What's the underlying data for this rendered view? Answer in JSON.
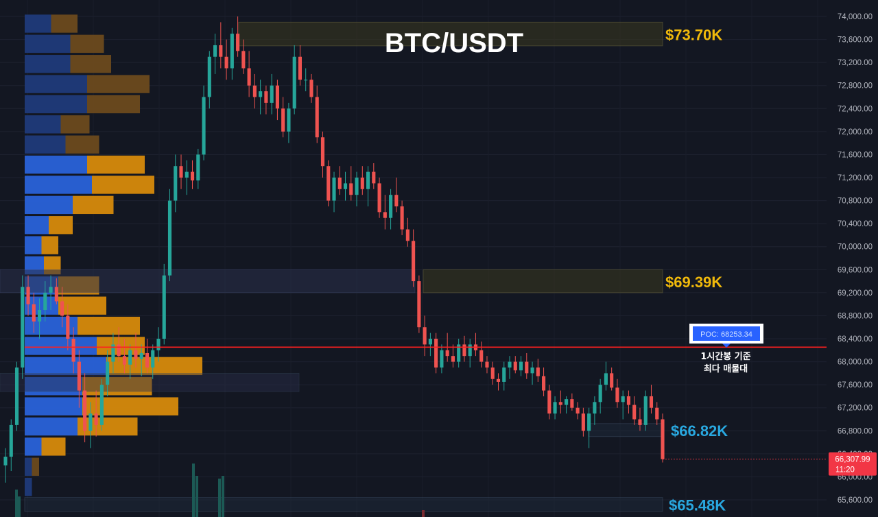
{
  "chart_data": {
    "type": "candlestick",
    "title": "BTC/USDT",
    "y_axis": {
      "min": 65400,
      "max": 74200,
      "ticks": [
        74000,
        73600,
        73200,
        72800,
        72400,
        72000,
        71600,
        71200,
        70800,
        70400,
        70000,
        69600,
        69200,
        68800,
        68400,
        68000,
        67600,
        67200,
        66800,
        66400,
        66000,
        65600
      ],
      "tick_labels": [
        "74,000.00",
        "73,600.00",
        "73,200.00",
        "72,800.00",
        "72,400.00",
        "72,000.00",
        "71,600.00",
        "71,200.00",
        "70,800.00",
        "70,400.00",
        "70,000.00",
        "69,600.00",
        "69,200.00",
        "68,800.00",
        "68,400.00",
        "68,000.00",
        "67,600.00",
        "67,200.00",
        "66,800.00",
        "66,400.00",
        "66,000.00",
        "65,600.00"
      ]
    },
    "current_price": {
      "label": "66,307.99",
      "timer": "11:20",
      "value": 66308,
      "color": "#f23645"
    },
    "poc": {
      "label": "POC: 68253.34",
      "value": 68253,
      "annotation_line1": "1시간봉 기준",
      "annotation_line2": "최다 매물대",
      "color": "#ff1f1f"
    },
    "zones": [
      {
        "label": "$73.70K",
        "top": 73900,
        "bottom": 73490,
        "color": "#f0b90b"
      },
      {
        "label": "$69.39K",
        "top": 69600,
        "bottom": 69200,
        "color": "#f0b90b"
      },
      {
        "label": "$66.82K",
        "top": 66925,
        "bottom": 66700,
        "color": "#29a8e0"
      },
      {
        "label": "$65.48K",
        "top": 65640,
        "bottom": 65400,
        "color": "#29a8e0"
      }
    ],
    "volume_profile": [
      {
        "top": 74050,
        "bottom": 73700,
        "buy": 0.55,
        "sell": 0.55
      },
      {
        "top": 73700,
        "bottom": 73350,
        "buy": 0.95,
        "sell": 0.7
      },
      {
        "top": 73350,
        "bottom": 73000,
        "buy": 0.95,
        "sell": 0.85
      },
      {
        "top": 73000,
        "bottom": 72650,
        "buy": 1.3,
        "sell": 1.3
      },
      {
        "top": 72650,
        "bottom": 72300,
        "buy": 1.3,
        "sell": 1.1
      },
      {
        "top": 72300,
        "bottom": 71950,
        "buy": 0.75,
        "sell": 0.6
      },
      {
        "top": 71950,
        "bottom": 71600,
        "buy": 0.85,
        "sell": 0.7
      },
      {
        "top": 71600,
        "bottom": 71250,
        "buy": 1.3,
        "sell": 1.2
      },
      {
        "top": 71250,
        "bottom": 70900,
        "buy": 1.4,
        "sell": 1.3
      },
      {
        "top": 70900,
        "bottom": 70550,
        "buy": 1.0,
        "sell": 0.85
      },
      {
        "top": 70550,
        "bottom": 70200,
        "buy": 0.5,
        "sell": 0.5
      },
      {
        "top": 70200,
        "bottom": 69850,
        "buy": 0.35,
        "sell": 0.35
      },
      {
        "top": 69850,
        "bottom": 69500,
        "buy": 0.4,
        "sell": 0.35
      },
      {
        "top": 69500,
        "bottom": 69150,
        "buy": 0.7,
        "sell": 0.85
      },
      {
        "top": 69150,
        "bottom": 68800,
        "buy": 0.7,
        "sell": 1.0
      },
      {
        "top": 68800,
        "bottom": 68450,
        "buy": 1.1,
        "sell": 1.3
      },
      {
        "top": 68450,
        "bottom": 68100,
        "buy": 1.5,
        "sell": 1.0
      },
      {
        "top": 68100,
        "bottom": 67750,
        "buy": 1.7,
        "sell": 2.0
      },
      {
        "top": 67750,
        "bottom": 67400,
        "buy": 1.2,
        "sell": 1.45
      },
      {
        "top": 67400,
        "bottom": 67050,
        "buy": 1.2,
        "sell": 2.0
      },
      {
        "top": 67050,
        "bottom": 66700,
        "buy": 1.1,
        "sell": 1.25
      },
      {
        "top": 66700,
        "bottom": 66350,
        "buy": 0.35,
        "sell": 0.5
      },
      {
        "top": 66350,
        "bottom": 66000,
        "buy": 0.15,
        "sell": 0.15
      },
      {
        "top": 66000,
        "bottom": 65650,
        "buy": 0.15,
        "sell": 0.0
      }
    ],
    "candles": [
      {
        "o": 66200,
        "h": 66500,
        "l": 65900,
        "c": 66350
      },
      {
        "o": 66350,
        "h": 67000,
        "l": 66100,
        "c": 66900
      },
      {
        "o": 66900,
        "h": 68000,
        "l": 66800,
        "c": 67900
      },
      {
        "o": 67900,
        "h": 69500,
        "l": 67700,
        "c": 69300
      },
      {
        "o": 69300,
        "h": 69500,
        "l": 68800,
        "c": 69000
      },
      {
        "o": 69000,
        "h": 69200,
        "l": 68500,
        "c": 68700
      },
      {
        "o": 68700,
        "h": 69100,
        "l": 68400,
        "c": 68900
      },
      {
        "o": 68900,
        "h": 69400,
        "l": 68700,
        "c": 69200
      },
      {
        "o": 69200,
        "h": 69500,
        "l": 68900,
        "c": 69300
      },
      {
        "o": 69300,
        "h": 69450,
        "l": 69000,
        "c": 69050
      },
      {
        "o": 69050,
        "h": 69300,
        "l": 68600,
        "c": 68800
      },
      {
        "o": 68800,
        "h": 69000,
        "l": 68200,
        "c": 68400
      },
      {
        "o": 68400,
        "h": 68600,
        "l": 67800,
        "c": 68000
      },
      {
        "o": 68000,
        "h": 68200,
        "l": 67200,
        "c": 67500
      },
      {
        "o": 67500,
        "h": 67800,
        "l": 66600,
        "c": 66800
      },
      {
        "o": 66800,
        "h": 67300,
        "l": 66500,
        "c": 67100
      },
      {
        "o": 67100,
        "h": 67500,
        "l": 66700,
        "c": 66900
      },
      {
        "o": 66900,
        "h": 67700,
        "l": 66800,
        "c": 67600
      },
      {
        "o": 67600,
        "h": 68200,
        "l": 67400,
        "c": 68000
      },
      {
        "o": 68000,
        "h": 68500,
        "l": 67800,
        "c": 68300
      },
      {
        "o": 68300,
        "h": 68600,
        "l": 68000,
        "c": 68100
      },
      {
        "o": 68100,
        "h": 68400,
        "l": 67800,
        "c": 67950
      },
      {
        "o": 67950,
        "h": 68300,
        "l": 67700,
        "c": 68200
      },
      {
        "o": 68200,
        "h": 68500,
        "l": 67900,
        "c": 68050
      },
      {
        "o": 68050,
        "h": 68300,
        "l": 67750,
        "c": 68150
      },
      {
        "o": 68150,
        "h": 68400,
        "l": 67800,
        "c": 67900
      },
      {
        "o": 67900,
        "h": 68300,
        "l": 67700,
        "c": 68200
      },
      {
        "o": 68200,
        "h": 68600,
        "l": 68000,
        "c": 68400
      },
      {
        "o": 68400,
        "h": 69700,
        "l": 68300,
        "c": 69500
      },
      {
        "o": 69500,
        "h": 71000,
        "l": 69400,
        "c": 70800
      },
      {
        "o": 70800,
        "h": 71600,
        "l": 70600,
        "c": 71400
      },
      {
        "o": 71400,
        "h": 71600,
        "l": 71000,
        "c": 71200
      },
      {
        "o": 71200,
        "h": 71500,
        "l": 70900,
        "c": 71300
      },
      {
        "o": 71300,
        "h": 71500,
        "l": 71000,
        "c": 71150
      },
      {
        "o": 71150,
        "h": 71700,
        "l": 71000,
        "c": 71600
      },
      {
        "o": 71600,
        "h": 72800,
        "l": 71500,
        "c": 72600
      },
      {
        "o": 72600,
        "h": 73400,
        "l": 72400,
        "c": 73300
      },
      {
        "o": 73300,
        "h": 73700,
        "l": 73000,
        "c": 73500
      },
      {
        "o": 73500,
        "h": 73900,
        "l": 73100,
        "c": 73300
      },
      {
        "o": 73300,
        "h": 73600,
        "l": 72900,
        "c": 73100
      },
      {
        "o": 73100,
        "h": 73800,
        "l": 72900,
        "c": 73700
      },
      {
        "o": 73700,
        "h": 74000,
        "l": 73300,
        "c": 73400
      },
      {
        "o": 73400,
        "h": 73600,
        "l": 73000,
        "c": 73100
      },
      {
        "o": 73100,
        "h": 73400,
        "l": 72600,
        "c": 72800
      },
      {
        "o": 72800,
        "h": 73000,
        "l": 72400,
        "c": 72600
      },
      {
        "o": 72600,
        "h": 72900,
        "l": 72300,
        "c": 72700
      },
      {
        "o": 72700,
        "h": 72800,
        "l": 72300,
        "c": 72500
      },
      {
        "o": 72500,
        "h": 73000,
        "l": 72300,
        "c": 72800
      },
      {
        "o": 72800,
        "h": 72900,
        "l": 72200,
        "c": 72400
      },
      {
        "o": 72400,
        "h": 72600,
        "l": 71900,
        "c": 72000
      },
      {
        "o": 72000,
        "h": 72500,
        "l": 71800,
        "c": 72400
      },
      {
        "o": 72400,
        "h": 73500,
        "l": 72300,
        "c": 73300
      },
      {
        "o": 73300,
        "h": 73500,
        "l": 72800,
        "c": 72900
      },
      {
        "o": 72900,
        "h": 73100,
        "l": 72700,
        "c": 72900
      },
      {
        "o": 72900,
        "h": 73000,
        "l": 72500,
        "c": 72600
      },
      {
        "o": 72600,
        "h": 72800,
        "l": 71800,
        "c": 71900
      },
      {
        "o": 71900,
        "h": 72000,
        "l": 71200,
        "c": 71400
      },
      {
        "o": 71400,
        "h": 71500,
        "l": 70700,
        "c": 70800
      },
      {
        "o": 70800,
        "h": 71300,
        "l": 70600,
        "c": 71200
      },
      {
        "o": 71200,
        "h": 71400,
        "l": 70900,
        "c": 71000
      },
      {
        "o": 71000,
        "h": 71300,
        "l": 70800,
        "c": 71100
      },
      {
        "o": 71100,
        "h": 71400,
        "l": 70800,
        "c": 70900
      },
      {
        "o": 70900,
        "h": 71300,
        "l": 70700,
        "c": 71200
      },
      {
        "o": 71200,
        "h": 71400,
        "l": 70900,
        "c": 71000
      },
      {
        "o": 71000,
        "h": 71400,
        "l": 70700,
        "c": 71300
      },
      {
        "o": 71300,
        "h": 71450,
        "l": 71000,
        "c": 71100
      },
      {
        "o": 71100,
        "h": 71200,
        "l": 70500,
        "c": 70600
      },
      {
        "o": 70600,
        "h": 70900,
        "l": 70300,
        "c": 70500
      },
      {
        "o": 70500,
        "h": 71000,
        "l": 70300,
        "c": 70900
      },
      {
        "o": 70900,
        "h": 71200,
        "l": 70600,
        "c": 70700
      },
      {
        "o": 70700,
        "h": 70800,
        "l": 70200,
        "c": 70300
      },
      {
        "o": 70300,
        "h": 70500,
        "l": 70000,
        "c": 70100
      },
      {
        "o": 70100,
        "h": 70300,
        "l": 69300,
        "c": 69400
      },
      {
        "o": 69400,
        "h": 69500,
        "l": 68500,
        "c": 68600
      },
      {
        "o": 68600,
        "h": 68800,
        "l": 68100,
        "c": 68300
      },
      {
        "o": 68300,
        "h": 68500,
        "l": 68100,
        "c": 68400
      },
      {
        "o": 68400,
        "h": 68500,
        "l": 67800,
        "c": 67900
      },
      {
        "o": 67900,
        "h": 68300,
        "l": 67800,
        "c": 68200
      },
      {
        "o": 68200,
        "h": 68500,
        "l": 68000,
        "c": 68100
      },
      {
        "o": 68100,
        "h": 68300,
        "l": 67900,
        "c": 68000
      },
      {
        "o": 68000,
        "h": 68400,
        "l": 67900,
        "c": 68300
      },
      {
        "o": 68300,
        "h": 68450,
        "l": 68000,
        "c": 68100
      },
      {
        "o": 68100,
        "h": 68400,
        "l": 67900,
        "c": 68300
      },
      {
        "o": 68300,
        "h": 68500,
        "l": 68100,
        "c": 68200
      },
      {
        "o": 68200,
        "h": 68350,
        "l": 67900,
        "c": 68000
      },
      {
        "o": 68000,
        "h": 68100,
        "l": 67800,
        "c": 67900
      },
      {
        "o": 67900,
        "h": 68000,
        "l": 67600,
        "c": 67700
      },
      {
        "o": 67700,
        "h": 67800,
        "l": 67500,
        "c": 67650
      },
      {
        "o": 67650,
        "h": 68000,
        "l": 67500,
        "c": 67900
      },
      {
        "o": 67900,
        "h": 68100,
        "l": 67700,
        "c": 68000
      },
      {
        "o": 68000,
        "h": 68100,
        "l": 67800,
        "c": 67850
      },
      {
        "o": 67850,
        "h": 68100,
        "l": 67750,
        "c": 68000
      },
      {
        "o": 68000,
        "h": 68150,
        "l": 67700,
        "c": 67800
      },
      {
        "o": 67800,
        "h": 68000,
        "l": 67600,
        "c": 67900
      },
      {
        "o": 67900,
        "h": 68050,
        "l": 67650,
        "c": 67750
      },
      {
        "o": 67750,
        "h": 67900,
        "l": 67400,
        "c": 67500
      },
      {
        "o": 67500,
        "h": 67600,
        "l": 67000,
        "c": 67100
      },
      {
        "o": 67100,
        "h": 67400,
        "l": 67000,
        "c": 67300
      },
      {
        "o": 67300,
        "h": 67500,
        "l": 67100,
        "c": 67250
      },
      {
        "o": 67250,
        "h": 67400,
        "l": 67100,
        "c": 67350
      },
      {
        "o": 67350,
        "h": 67450,
        "l": 67150,
        "c": 67200
      },
      {
        "o": 67200,
        "h": 67300,
        "l": 67000,
        "c": 67100
      },
      {
        "o": 67100,
        "h": 67200,
        "l": 66700,
        "c": 66800
      },
      {
        "o": 66800,
        "h": 67200,
        "l": 66500,
        "c": 67100
      },
      {
        "o": 67100,
        "h": 67400,
        "l": 66900,
        "c": 67300
      },
      {
        "o": 67300,
        "h": 67700,
        "l": 67100,
        "c": 67600
      },
      {
        "o": 67600,
        "h": 68000,
        "l": 67500,
        "c": 67800
      },
      {
        "o": 67800,
        "h": 67900,
        "l": 67500,
        "c": 67550
      },
      {
        "o": 67550,
        "h": 67700,
        "l": 67200,
        "c": 67300
      },
      {
        "o": 67300,
        "h": 67500,
        "l": 67000,
        "c": 67400
      },
      {
        "o": 67400,
        "h": 67500,
        "l": 67100,
        "c": 67250
      },
      {
        "o": 67250,
        "h": 67400,
        "l": 66900,
        "c": 67000
      },
      {
        "o": 67000,
        "h": 67200,
        "l": 66800,
        "c": 66900
      },
      {
        "o": 66900,
        "h": 67500,
        "l": 66800,
        "c": 67400
      },
      {
        "o": 67400,
        "h": 67600,
        "l": 67100,
        "c": 67200
      },
      {
        "o": 67200,
        "h": 67300,
        "l": 66900,
        "c": 67000
      },
      {
        "o": 67000,
        "h": 67100,
        "l": 66250,
        "c": 66308
      }
    ]
  }
}
